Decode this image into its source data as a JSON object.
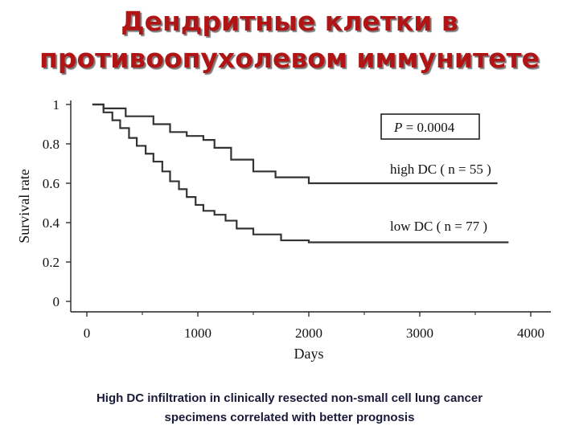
{
  "slide": {
    "title_line1": "Дендритные клетки в",
    "title_line2": "противоопухолевом иммунитете",
    "caption_line1": "High DC  infiltration in clinically resected non-small cell lung cancer",
    "caption_line2": "specimens correlated with better prognosis",
    "title_color": "#b01414"
  },
  "chart_data": {
    "type": "line",
    "xlabel": "Days",
    "ylabel": "Survival rate",
    "xlim": [
      0,
      4000
    ],
    "ylim": [
      0,
      1
    ],
    "xticks": [
      "0",
      "1000",
      "2000",
      "3000",
      "4000"
    ],
    "yticks": [
      "0",
      "0.2",
      "0.4",
      "0.6",
      "0.8",
      "1"
    ],
    "grid": false,
    "annotation": "P = 0.0004",
    "annotation_prefix": "P",
    "annotation_value": " = 0.0004",
    "series": [
      {
        "name": "high DC ( n = 55 )",
        "x": [
          50,
          150,
          150,
          350,
          350,
          600,
          600,
          750,
          750,
          900,
          900,
          1050,
          1050,
          1150,
          1150,
          1300,
          1300,
          1500,
          1500,
          1700,
          1700,
          2000,
          2000,
          3700
        ],
        "y": [
          1.0,
          1.0,
          0.98,
          0.98,
          0.94,
          0.94,
          0.9,
          0.9,
          0.86,
          0.86,
          0.84,
          0.84,
          0.82,
          0.82,
          0.78,
          0.78,
          0.72,
          0.72,
          0.66,
          0.66,
          0.63,
          0.63,
          0.6,
          0.6
        ]
      },
      {
        "name": "low DC ( n = 77 )",
        "x": [
          50,
          150,
          150,
          230,
          230,
          300,
          300,
          380,
          380,
          450,
          450,
          530,
          530,
          600,
          600,
          680,
          680,
          750,
          750,
          830,
          830,
          900,
          900,
          980,
          980,
          1050,
          1050,
          1150,
          1150,
          1250,
          1250,
          1350,
          1350,
          1500,
          1500,
          1750,
          1750,
          2000,
          2000,
          3800
        ],
        "y": [
          1.0,
          1.0,
          0.96,
          0.96,
          0.92,
          0.92,
          0.88,
          0.88,
          0.83,
          0.83,
          0.79,
          0.79,
          0.75,
          0.75,
          0.71,
          0.71,
          0.66,
          0.66,
          0.61,
          0.61,
          0.57,
          0.57,
          0.53,
          0.53,
          0.49,
          0.49,
          0.46,
          0.46,
          0.44,
          0.44,
          0.41,
          0.41,
          0.37,
          0.37,
          0.34,
          0.34,
          0.31,
          0.31,
          0.3,
          0.3
        ]
      }
    ]
  }
}
